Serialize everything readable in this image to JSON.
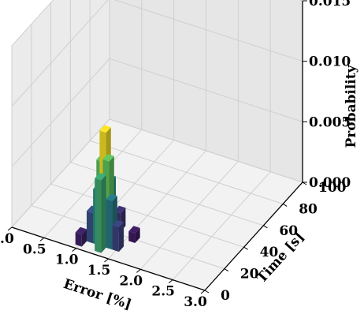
{
  "chart_data": {
    "type": "3d-bar",
    "xlabel": "Error [%]",
    "ylabel": "Time [s]",
    "zlabel": "Probability",
    "x_ticks": [
      "0.0",
      "0.5",
      "1.0",
      "1.5",
      "2.0",
      "2.5",
      "3.0"
    ],
    "y_ticks": [
      "0",
      "20",
      "40",
      "60",
      "80",
      "100"
    ],
    "z_ticks": [
      "0.000",
      "0.005",
      "0.010",
      "0.015"
    ],
    "xlim": [
      0,
      3
    ],
    "ylim": [
      0,
      100
    ],
    "zlim": [
      0,
      0.015
    ],
    "colormap": "viridis",
    "peak": {
      "error": 1.3,
      "time": 10,
      "probability": 0.0095
    },
    "sample_bars": [
      {
        "error": 1.3,
        "time": 10,
        "probability": 0.0095
      },
      {
        "error": 1.25,
        "time": 10,
        "probability": 0.007
      },
      {
        "error": 1.35,
        "time": 10,
        "probability": 0.0072
      },
      {
        "error": 1.3,
        "time": 5,
        "probability": 0.006
      },
      {
        "error": 1.3,
        "time": 15,
        "probability": 0.005
      },
      {
        "error": 1.2,
        "time": 10,
        "probability": 0.0045
      },
      {
        "error": 1.4,
        "time": 10,
        "probability": 0.004
      },
      {
        "error": 1.1,
        "time": 10,
        "probability": 0.0025
      },
      {
        "error": 1.5,
        "time": 10,
        "probability": 0.002
      },
      {
        "error": 1.3,
        "time": 25,
        "probability": 0.0015
      },
      {
        "error": 1.0,
        "time": 5,
        "probability": 0.001
      },
      {
        "error": 1.6,
        "time": 20,
        "probability": 0.0008
      }
    ]
  }
}
